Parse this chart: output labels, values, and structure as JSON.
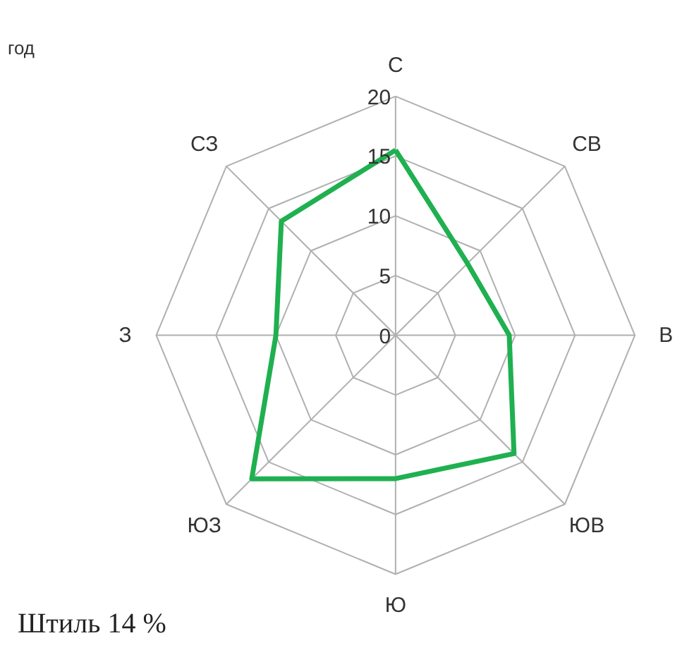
{
  "chart_data": {
    "type": "radar",
    "categories": [
      "С",
      "СВ",
      "В",
      "ЮВ",
      "Ю",
      "ЮЗ",
      "З",
      "СЗ"
    ],
    "series": [
      {
        "color": "#1fb050",
        "values": [
          15.5,
          8.5,
          9.5,
          14,
          12,
          17,
          10,
          13.5
        ]
      }
    ],
    "ylim": [
      0,
      20
    ],
    "yticks": [
      0,
      5,
      10,
      15,
      20
    ],
    "grid": true,
    "line_style": "solid",
    "annotations": [
      "год",
      "Штиль 14 %"
    ]
  }
}
